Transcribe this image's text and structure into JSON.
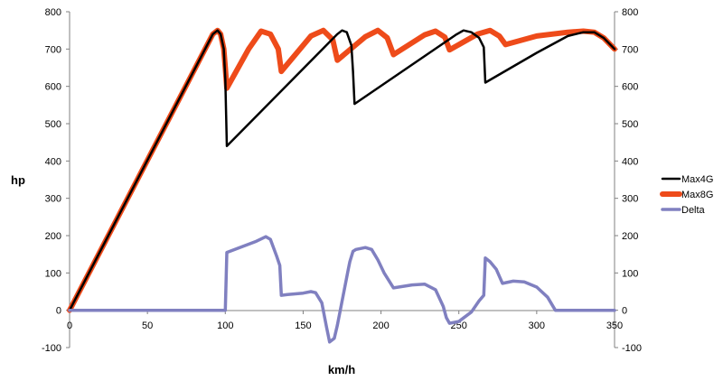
{
  "chart_data": {
    "type": "line",
    "xlabel": "km/h",
    "ylabel": "hp",
    "xlim": [
      0,
      350
    ],
    "ylim": [
      -100,
      800
    ],
    "x_ticks": [
      0,
      50,
      100,
      150,
      200,
      250,
      300,
      350
    ],
    "y_ticks": [
      -100,
      0,
      100,
      200,
      300,
      400,
      500,
      600,
      700,
      800
    ],
    "secondary_y_ticks": [
      -100,
      0,
      100,
      200,
      300,
      400,
      500,
      600,
      700,
      800
    ],
    "grid": false,
    "legend_position": "right",
    "series": [
      {
        "name": "Max4G",
        "color": "#000000",
        "points": [
          [
            0,
            0
          ],
          [
            92,
            740
          ],
          [
            95,
            750
          ],
          [
            97,
            740
          ],
          [
            99,
            700
          ],
          [
            100,
            620
          ],
          [
            101,
            440
          ],
          [
            172,
            740
          ],
          [
            175,
            750
          ],
          [
            178,
            745
          ],
          [
            181,
            710
          ],
          [
            182,
            640
          ],
          [
            183,
            553
          ],
          [
            248,
            738
          ],
          [
            253,
            750
          ],
          [
            258,
            745
          ],
          [
            263,
            730
          ],
          [
            266,
            705
          ],
          [
            267,
            610
          ],
          [
            300,
            690
          ],
          [
            320,
            735
          ],
          [
            330,
            745
          ],
          [
            337,
            745
          ],
          [
            343,
            730
          ],
          [
            350,
            700
          ]
        ]
      },
      {
        "name": "Max8G",
        "color": "#ee4b1a",
        "points": [
          [
            0,
            0
          ],
          [
            92,
            740
          ],
          [
            95,
            750
          ],
          [
            97,
            740
          ],
          [
            99,
            700
          ],
          [
            100,
            650
          ],
          [
            101,
            595
          ],
          [
            115,
            700
          ],
          [
            123,
            748
          ],
          [
            129,
            740
          ],
          [
            134,
            700
          ],
          [
            136,
            640
          ],
          [
            155,
            735
          ],
          [
            163,
            750
          ],
          [
            169,
            725
          ],
          [
            172,
            670
          ],
          [
            190,
            733
          ],
          [
            198,
            750
          ],
          [
            204,
            730
          ],
          [
            208,
            685
          ],
          [
            228,
            738
          ],
          [
            235,
            748
          ],
          [
            241,
            732
          ],
          [
            244,
            698
          ],
          [
            262,
            740
          ],
          [
            270,
            750
          ],
          [
            276,
            735
          ],
          [
            280,
            712
          ],
          [
            300,
            735
          ],
          [
            320,
            745
          ],
          [
            330,
            748
          ],
          [
            337,
            745
          ],
          [
            343,
            730
          ],
          [
            350,
            700
          ]
        ]
      },
      {
        "name": "Delta",
        "color": "#8080c0",
        "points": [
          [
            0,
            0
          ],
          [
            100,
            0
          ],
          [
            101,
            155
          ],
          [
            120,
            185
          ],
          [
            126,
            197
          ],
          [
            129,
            190
          ],
          [
            133,
            145
          ],
          [
            135,
            120
          ],
          [
            136,
            40
          ],
          [
            140,
            42
          ],
          [
            145,
            44
          ],
          [
            150,
            46
          ],
          [
            155,
            50
          ],
          [
            158,
            47
          ],
          [
            162,
            20
          ],
          [
            165,
            -45
          ],
          [
            167,
            -85
          ],
          [
            170,
            -75
          ],
          [
            172,
            -40
          ],
          [
            179,
            110
          ],
          [
            180,
            130
          ],
          [
            182,
            158
          ],
          [
            184,
            163
          ],
          [
            190,
            168
          ],
          [
            194,
            163
          ],
          [
            198,
            135
          ],
          [
            202,
            100
          ],
          [
            208,
            60
          ],
          [
            220,
            68
          ],
          [
            228,
            70
          ],
          [
            235,
            55
          ],
          [
            240,
            10
          ],
          [
            242,
            -20
          ],
          [
            244,
            -35
          ],
          [
            250,
            -30
          ],
          [
            258,
            -5
          ],
          [
            263,
            25
          ],
          [
            266,
            40
          ],
          [
            267,
            140
          ],
          [
            270,
            130
          ],
          [
            274,
            110
          ],
          [
            278,
            72
          ],
          [
            285,
            78
          ],
          [
            292,
            76
          ],
          [
            300,
            62
          ],
          [
            307,
            35
          ],
          [
            312,
            0
          ],
          [
            350,
            0
          ]
        ]
      }
    ]
  }
}
